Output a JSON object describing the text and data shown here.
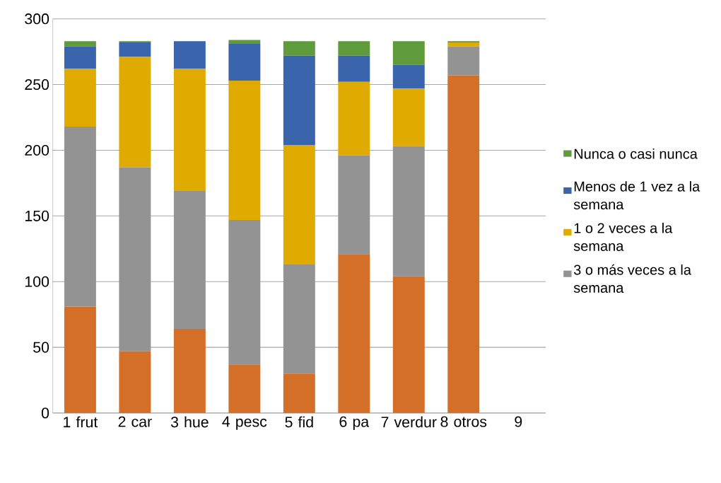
{
  "chart_data": {
    "type": "bar",
    "stacked": true,
    "categories": [
      "1 frut",
      "2 car",
      "3 hue",
      "4 pesc",
      "5 fid",
      "6 pa",
      "7 verdur",
      "8 otros",
      "9"
    ],
    "series": [
      {
        "color": "#d46f28",
        "values": [
          81,
          47,
          64,
          37,
          30,
          121,
          104,
          257,
          null
        ]
      },
      {
        "name": "3 o más veces a la semana",
        "color": "#939393",
        "values": [
          137,
          140,
          105,
          110,
          83,
          75,
          99,
          22,
          null
        ]
      },
      {
        "name": "1 o 2 veces a la semana",
        "color": "#e0ab00",
        "values": [
          44,
          84,
          93,
          106,
          91,
          56,
          44,
          3,
          null
        ]
      },
      {
        "name": "Menos de 1 vez a la semana",
        "color": "#3a64ab",
        "values": [
          17,
          11,
          21,
          28,
          68,
          20,
          18,
          0,
          null
        ]
      },
      {
        "name": "Nunca o casi nunca",
        "color": "#5f9a3b",
        "values": [
          4,
          1,
          0,
          3,
          11,
          11,
          18,
          1,
          null
        ]
      }
    ],
    "ylim": [
      0,
      300
    ],
    "yticks": [
      0,
      50,
      100,
      150,
      200,
      250,
      300
    ],
    "grid": "y",
    "legend": "right"
  }
}
